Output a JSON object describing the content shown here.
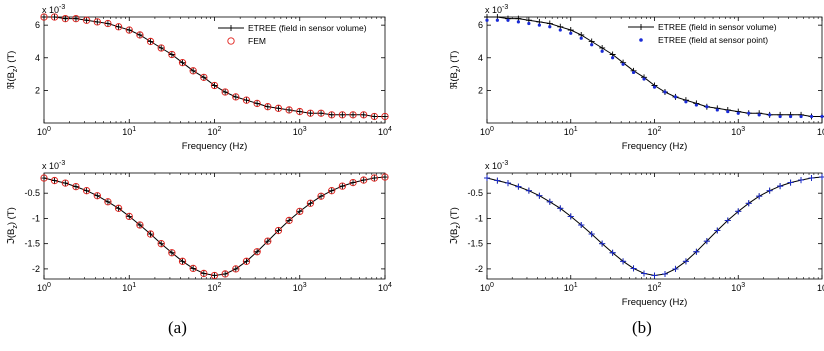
{
  "panel_labels": [
    "(a)",
    "(b)"
  ],
  "chart_data": [
    {
      "type": "line",
      "panel": "(a)",
      "xscale": "log",
      "xlim": [
        1,
        10000
      ],
      "ylim": [
        0,
        0.0065
      ],
      "multiplier_label": "x 10",
      "multiplier_exp": "-3",
      "xlabel": "Frequency (Hz)",
      "ylabel": "ℜ(B_z) (T)",
      "xticks": [
        1,
        10,
        100,
        1000,
        10000
      ],
      "xtick_labels": [
        [
          "10",
          "0"
        ],
        [
          "10",
          "1"
        ],
        [
          "10",
          "2"
        ],
        [
          "10",
          "3"
        ],
        [
          "10",
          "4"
        ]
      ],
      "yticks": [
        0.002,
        0.004,
        0.006
      ],
      "ytick_labels": [
        "2",
        "4",
        "6"
      ],
      "legend_position": "top-right",
      "series": [
        {
          "name": "ETREE (field in sensor volume)",
          "style": "line-plus",
          "color": "#000000",
          "x": [
            1.0,
            1.33,
            1.78,
            2.37,
            3.16,
            4.22,
            5.62,
            7.5,
            10.0,
            13.34,
            17.78,
            23.71,
            31.62,
            42.17,
            56.23,
            74.99,
            100.0,
            133.35,
            177.83,
            237.14,
            316.23,
            421.7,
            562.34,
            749.89,
            1000.0,
            1333.52,
            1778.28,
            2371.37,
            3162.28,
            4216.97,
            5623.41,
            7498.94,
            10000.0
          ],
          "values": [
            0.0065,
            0.0065,
            0.0064,
            0.0064,
            0.0063,
            0.0062,
            0.0061,
            0.0059,
            0.0057,
            0.0054,
            0.005,
            0.0046,
            0.0042,
            0.0037,
            0.0032,
            0.0028,
            0.0023,
            0.0019,
            0.0016,
            0.0014,
            0.0012,
            0.001,
            0.0009,
            0.0008,
            0.0007,
            0.0006,
            0.0006,
            0.0005,
            0.0005,
            0.0005,
            0.0005,
            0.0004,
            0.0004
          ]
        },
        {
          "name": "FEM",
          "style": "circle",
          "color": "#e0201b",
          "x": [
            1.0,
            1.33,
            1.78,
            2.37,
            3.16,
            4.22,
            5.62,
            7.5,
            10.0,
            13.34,
            17.78,
            23.71,
            31.62,
            42.17,
            56.23,
            74.99,
            100.0,
            133.35,
            177.83,
            237.14,
            316.23,
            421.7,
            562.34,
            749.89,
            1000.0,
            1333.52,
            1778.28,
            2371.37,
            3162.28,
            4216.97,
            5623.41,
            7498.94,
            10000.0
          ],
          "values": [
            0.0065,
            0.0065,
            0.0064,
            0.0064,
            0.0063,
            0.0062,
            0.0061,
            0.0059,
            0.0057,
            0.0054,
            0.005,
            0.0046,
            0.0042,
            0.0037,
            0.0032,
            0.0028,
            0.0023,
            0.0019,
            0.0016,
            0.0014,
            0.0012,
            0.001,
            0.0009,
            0.0008,
            0.0007,
            0.0006,
            0.0006,
            0.0005,
            0.0005,
            0.0005,
            0.0005,
            0.0004,
            0.0004
          ]
        }
      ]
    },
    {
      "type": "line",
      "panel": "(a)",
      "xscale": "log",
      "xlim": [
        1,
        10000
      ],
      "ylim": [
        -0.0022,
        -0.0001
      ],
      "multiplier_label": "x 10",
      "multiplier_exp": "-3",
      "xlabel": "",
      "ylabel": "ℑ(B_z) (T)",
      "xticks": [
        1,
        10,
        100,
        1000,
        10000
      ],
      "xtick_labels": [
        [
          "10",
          "0"
        ],
        [
          "10",
          "1"
        ],
        [
          "10",
          "2"
        ],
        [
          "10",
          "3"
        ],
        [
          "10",
          "4"
        ]
      ],
      "yticks": [
        -0.002,
        -0.0015,
        -0.001,
        -0.0005
      ],
      "ytick_labels": [
        "-2",
        "-1.5",
        "-1",
        "-0.5"
      ],
      "series": [
        {
          "name": "ETREE (field in sensor volume)",
          "style": "line-plus",
          "color": "#000000",
          "x": [
            1.0,
            1.33,
            1.78,
            2.37,
            3.16,
            4.22,
            5.62,
            7.5,
            10.0,
            13.34,
            17.78,
            23.71,
            31.62,
            42.17,
            56.23,
            74.99,
            100.0,
            133.35,
            177.83,
            237.14,
            316.23,
            421.7,
            562.34,
            749.89,
            1000.0,
            1333.52,
            1778.28,
            2371.37,
            3162.28,
            4216.97,
            5623.41,
            7498.94,
            10000.0
          ],
          "values": [
            -0.0002,
            -0.00025,
            -0.0003,
            -0.00037,
            -0.00045,
            -0.00055,
            -0.00067,
            -0.0008,
            -0.00096,
            -0.00113,
            -0.00131,
            -0.0015,
            -0.00168,
            -0.00185,
            -0.00199,
            -0.00209,
            -0.00213,
            -0.0021,
            -0.002,
            -0.00185,
            -0.00166,
            -0.00145,
            -0.00124,
            -0.00104,
            -0.00086,
            -0.0007,
            -0.00056,
            -0.00045,
            -0.00036,
            -0.00029,
            -0.00024,
            -0.0002,
            -0.00018
          ]
        },
        {
          "name": "FEM",
          "style": "circle",
          "color": "#e0201b",
          "x": [
            1.0,
            1.33,
            1.78,
            2.37,
            3.16,
            4.22,
            5.62,
            7.5,
            10.0,
            13.34,
            17.78,
            23.71,
            31.62,
            42.17,
            56.23,
            74.99,
            100.0,
            133.35,
            177.83,
            237.14,
            316.23,
            421.7,
            562.34,
            749.89,
            1000.0,
            1333.52,
            1778.28,
            2371.37,
            3162.28,
            4216.97,
            5623.41,
            7498.94,
            10000.0
          ],
          "values": [
            -0.0002,
            -0.00025,
            -0.0003,
            -0.00037,
            -0.00045,
            -0.00055,
            -0.00067,
            -0.0008,
            -0.00096,
            -0.00113,
            -0.00131,
            -0.0015,
            -0.00168,
            -0.00185,
            -0.00199,
            -0.00209,
            -0.00213,
            -0.0021,
            -0.002,
            -0.00185,
            -0.00166,
            -0.00145,
            -0.00124,
            -0.00104,
            -0.00086,
            -0.0007,
            -0.00056,
            -0.00045,
            -0.00036,
            -0.00029,
            -0.00024,
            -0.0002,
            -0.00018
          ]
        }
      ]
    },
    {
      "type": "line",
      "panel": "(b)",
      "xscale": "log",
      "xlim": [
        1,
        10000
      ],
      "ylim": [
        0,
        0.0065
      ],
      "multiplier_label": "x 10",
      "multiplier_exp": "-3",
      "xlabel": "Frequency (Hz)",
      "ylabel": "ℜ(B_z) (T)",
      "xticks": [
        1,
        10,
        100,
        1000,
        10000
      ],
      "xtick_labels": [
        [
          "10",
          "0"
        ],
        [
          "10",
          "1"
        ],
        [
          "10",
          "2"
        ],
        [
          "10",
          "3"
        ],
        [
          "10",
          ""
        ]
      ],
      "yticks": [
        0.002,
        0.004,
        0.006
      ],
      "ytick_labels": [
        "2",
        "4",
        "6"
      ],
      "legend_position": "top-right",
      "series": [
        {
          "name": "ETREE (field in sensor volume)",
          "style": "line-plus",
          "color": "#000000",
          "x": [
            1.0,
            1.33,
            1.78,
            2.37,
            3.16,
            4.22,
            5.62,
            7.5,
            10.0,
            13.34,
            17.78,
            23.71,
            31.62,
            42.17,
            56.23,
            74.99,
            100.0,
            133.35,
            177.83,
            237.14,
            316.23,
            421.7,
            562.34,
            749.89,
            1000.0,
            1333.52,
            1778.28,
            2371.37,
            3162.28,
            4216.97,
            5623.41,
            7498.94,
            10000.0
          ],
          "values": [
            0.0065,
            0.0065,
            0.0064,
            0.0064,
            0.0063,
            0.0062,
            0.0061,
            0.0059,
            0.0057,
            0.0054,
            0.005,
            0.0046,
            0.0042,
            0.0037,
            0.0032,
            0.0028,
            0.0023,
            0.0019,
            0.0016,
            0.0014,
            0.0012,
            0.001,
            0.0009,
            0.0008,
            0.0007,
            0.0006,
            0.0006,
            0.0005,
            0.0005,
            0.0005,
            0.0005,
            0.0004,
            0.0004
          ]
        },
        {
          "name": "ETREE (field at sensor point)",
          "style": "dot",
          "color": "#1a2bd6",
          "x": [
            1.0,
            1.33,
            1.78,
            2.37,
            3.16,
            4.22,
            5.62,
            7.5,
            10.0,
            13.34,
            17.78,
            23.71,
            31.62,
            42.17,
            56.23,
            74.99,
            100.0,
            133.35,
            177.83,
            237.14,
            316.23,
            421.7,
            562.34,
            749.89,
            1000.0,
            1333.52,
            1778.28,
            2371.37,
            3162.28,
            4216.97,
            5623.41,
            7498.94,
            10000.0
          ],
          "values": [
            0.0063,
            0.0063,
            0.0063,
            0.0062,
            0.0061,
            0.006,
            0.0059,
            0.0057,
            0.0055,
            0.0052,
            0.0048,
            0.0044,
            0.004,
            0.0036,
            0.0031,
            0.0027,
            0.0022,
            0.0019,
            0.0016,
            0.0013,
            0.0011,
            0.001,
            0.0008,
            0.0007,
            0.0006,
            0.0006,
            0.0005,
            0.0005,
            0.0004,
            0.0004,
            0.0004,
            0.0004,
            0.0004
          ]
        }
      ]
    },
    {
      "type": "line",
      "panel": "(b)",
      "xscale": "log",
      "xlim": [
        1,
        10000
      ],
      "ylim": [
        -0.0022,
        -0.0001
      ],
      "multiplier_label": "x 10",
      "multiplier_exp": "-3",
      "xlabel": "Frequency (Hz)",
      "ylabel": "ℑ(B_z) (T)",
      "xticks": [
        1,
        10,
        100,
        1000,
        10000
      ],
      "xtick_labels": [
        [
          "10",
          "0"
        ],
        [
          "10",
          "1"
        ],
        [
          "10",
          "2"
        ],
        [
          "10",
          "3"
        ],
        [
          "10",
          ""
        ]
      ],
      "yticks": [
        -0.002,
        -0.0015,
        -0.001,
        -0.0005
      ],
      "ytick_labels": [
        "-2",
        "-1.5",
        "-1",
        "-0.5"
      ],
      "series": [
        {
          "name": "ETREE (field in sensor volume)",
          "style": "line-plus",
          "color": "#000000",
          "x": [
            1.0,
            1.33,
            1.78,
            2.37,
            3.16,
            4.22,
            5.62,
            7.5,
            10.0,
            13.34,
            17.78,
            23.71,
            31.62,
            42.17,
            56.23,
            74.99,
            100.0,
            133.35,
            177.83,
            237.14,
            316.23,
            421.7,
            562.34,
            749.89,
            1000.0,
            1333.52,
            1778.28,
            2371.37,
            3162.28,
            4216.97,
            5623.41,
            7498.94,
            10000.0
          ],
          "values": [
            -0.0002,
            -0.00025,
            -0.0003,
            -0.00037,
            -0.00045,
            -0.00055,
            -0.00067,
            -0.0008,
            -0.00096,
            -0.00113,
            -0.00131,
            -0.0015,
            -0.00168,
            -0.00185,
            -0.00199,
            -0.00209,
            -0.00213,
            -0.0021,
            -0.002,
            -0.00185,
            -0.00166,
            -0.00145,
            -0.00124,
            -0.00104,
            -0.00086,
            -0.0007,
            -0.00056,
            -0.00045,
            -0.00036,
            -0.00029,
            -0.00024,
            -0.0002,
            -0.00018
          ]
        },
        {
          "name": "ETREE (field at sensor point)",
          "style": "plus",
          "color": "#1a2bd6",
          "x": [
            1.0,
            1.33,
            1.78,
            2.37,
            3.16,
            4.22,
            5.62,
            7.5,
            10.0,
            13.34,
            17.78,
            23.71,
            31.62,
            42.17,
            56.23,
            74.99,
            100.0,
            133.35,
            177.83,
            237.14,
            316.23,
            421.7,
            562.34,
            749.89,
            1000.0,
            1333.52,
            1778.28,
            2371.37,
            3162.28,
            4216.97,
            5623.41,
            7498.94,
            10000.0
          ],
          "values": [
            -0.0002,
            -0.00025,
            -0.0003,
            -0.00037,
            -0.00045,
            -0.00055,
            -0.00067,
            -0.0008,
            -0.00096,
            -0.00113,
            -0.00131,
            -0.0015,
            -0.00168,
            -0.00185,
            -0.00199,
            -0.00209,
            -0.00213,
            -0.0021,
            -0.002,
            -0.00185,
            -0.00166,
            -0.00145,
            -0.00124,
            -0.00104,
            -0.00086,
            -0.0007,
            -0.00056,
            -0.00045,
            -0.00036,
            -0.00029,
            -0.00024,
            -0.0002,
            -0.00018
          ]
        }
      ]
    }
  ]
}
